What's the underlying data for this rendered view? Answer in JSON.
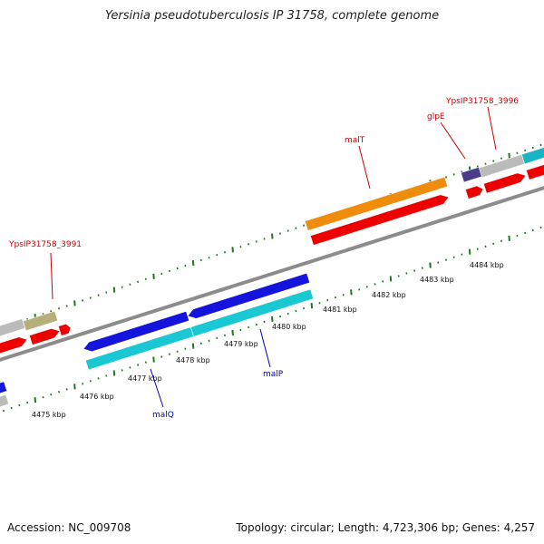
{
  "title": "Yersinia pseudotuberculosis IP 31758, complete genome",
  "footer": {
    "accession": "Accession: NC_009708",
    "summary": "Topology: circular; Length: 4,723,306 bp; Genes: 4,257"
  },
  "colors": {
    "backbone": "#8c8c8c",
    "tick": "#1e7a1e",
    "label_red": "#cc0000",
    "label_blue": "#0000bb"
  },
  "scale_labels": [
    "4475 kbp",
    "4476 kbp",
    "4477 kbp",
    "4478 kbp",
    "4479 kbp",
    "4480 kbp",
    "4481 kbp",
    "4482 kbp",
    "4483 kbp",
    "4484 kbp"
  ],
  "gene_labels": [
    {
      "text": "YpsIP31758_3991",
      "color": "red"
    },
    {
      "text": "malT",
      "color": "red"
    },
    {
      "text": "glpE",
      "color": "red"
    },
    {
      "text": "YpsIP31758_3996",
      "color": "red"
    },
    {
      "text": "malP",
      "color": "blue"
    },
    {
      "text": "malQ",
      "color": "blue"
    }
  ]
}
